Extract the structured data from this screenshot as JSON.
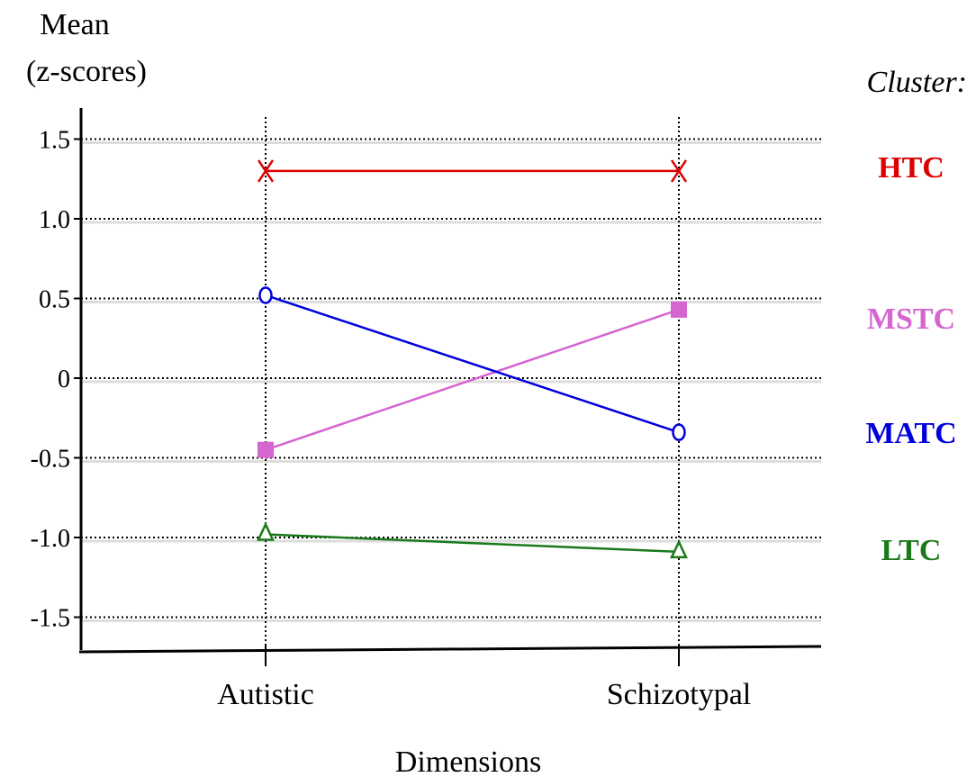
{
  "chart_data": {
    "type": "line",
    "ylabel_line1": "Mean",
    "ylabel_line2": "(z-scores)",
    "xlabel": "Dimensions",
    "legend_title": "Cluster:",
    "categories": [
      "Autistic",
      "Schizotypal"
    ],
    "yticks": [
      {
        "value": 1.5,
        "label": "1.5"
      },
      {
        "value": 1.0,
        "label": "1.0"
      },
      {
        "value": 0.5,
        "label": "0.5"
      },
      {
        "value": 0,
        "label": "0"
      },
      {
        "value": -0.5,
        "label": "-0.5"
      },
      {
        "value": -1.0,
        "label": "-1.0"
      },
      {
        "value": -1.5,
        "label": "-1.5"
      }
    ],
    "ylim": [
      -1.7,
      1.7
    ],
    "grid": true,
    "legend_position": "right",
    "series": [
      {
        "name": "HTC",
        "values": [
          1.3,
          1.3
        ],
        "color": "#dd0000",
        "marker": "x"
      },
      {
        "name": "MSTC",
        "values": [
          -0.45,
          0.43
        ],
        "color": "#d565d0",
        "marker": "square"
      },
      {
        "name": "MATC",
        "values": [
          0.52,
          -0.34
        ],
        "color": "#0000dd",
        "marker": "circle"
      },
      {
        "name": "LTC",
        "values": [
          -0.98,
          -1.09
        ],
        "color": "#1a7a1a",
        "marker": "triangle"
      }
    ]
  }
}
